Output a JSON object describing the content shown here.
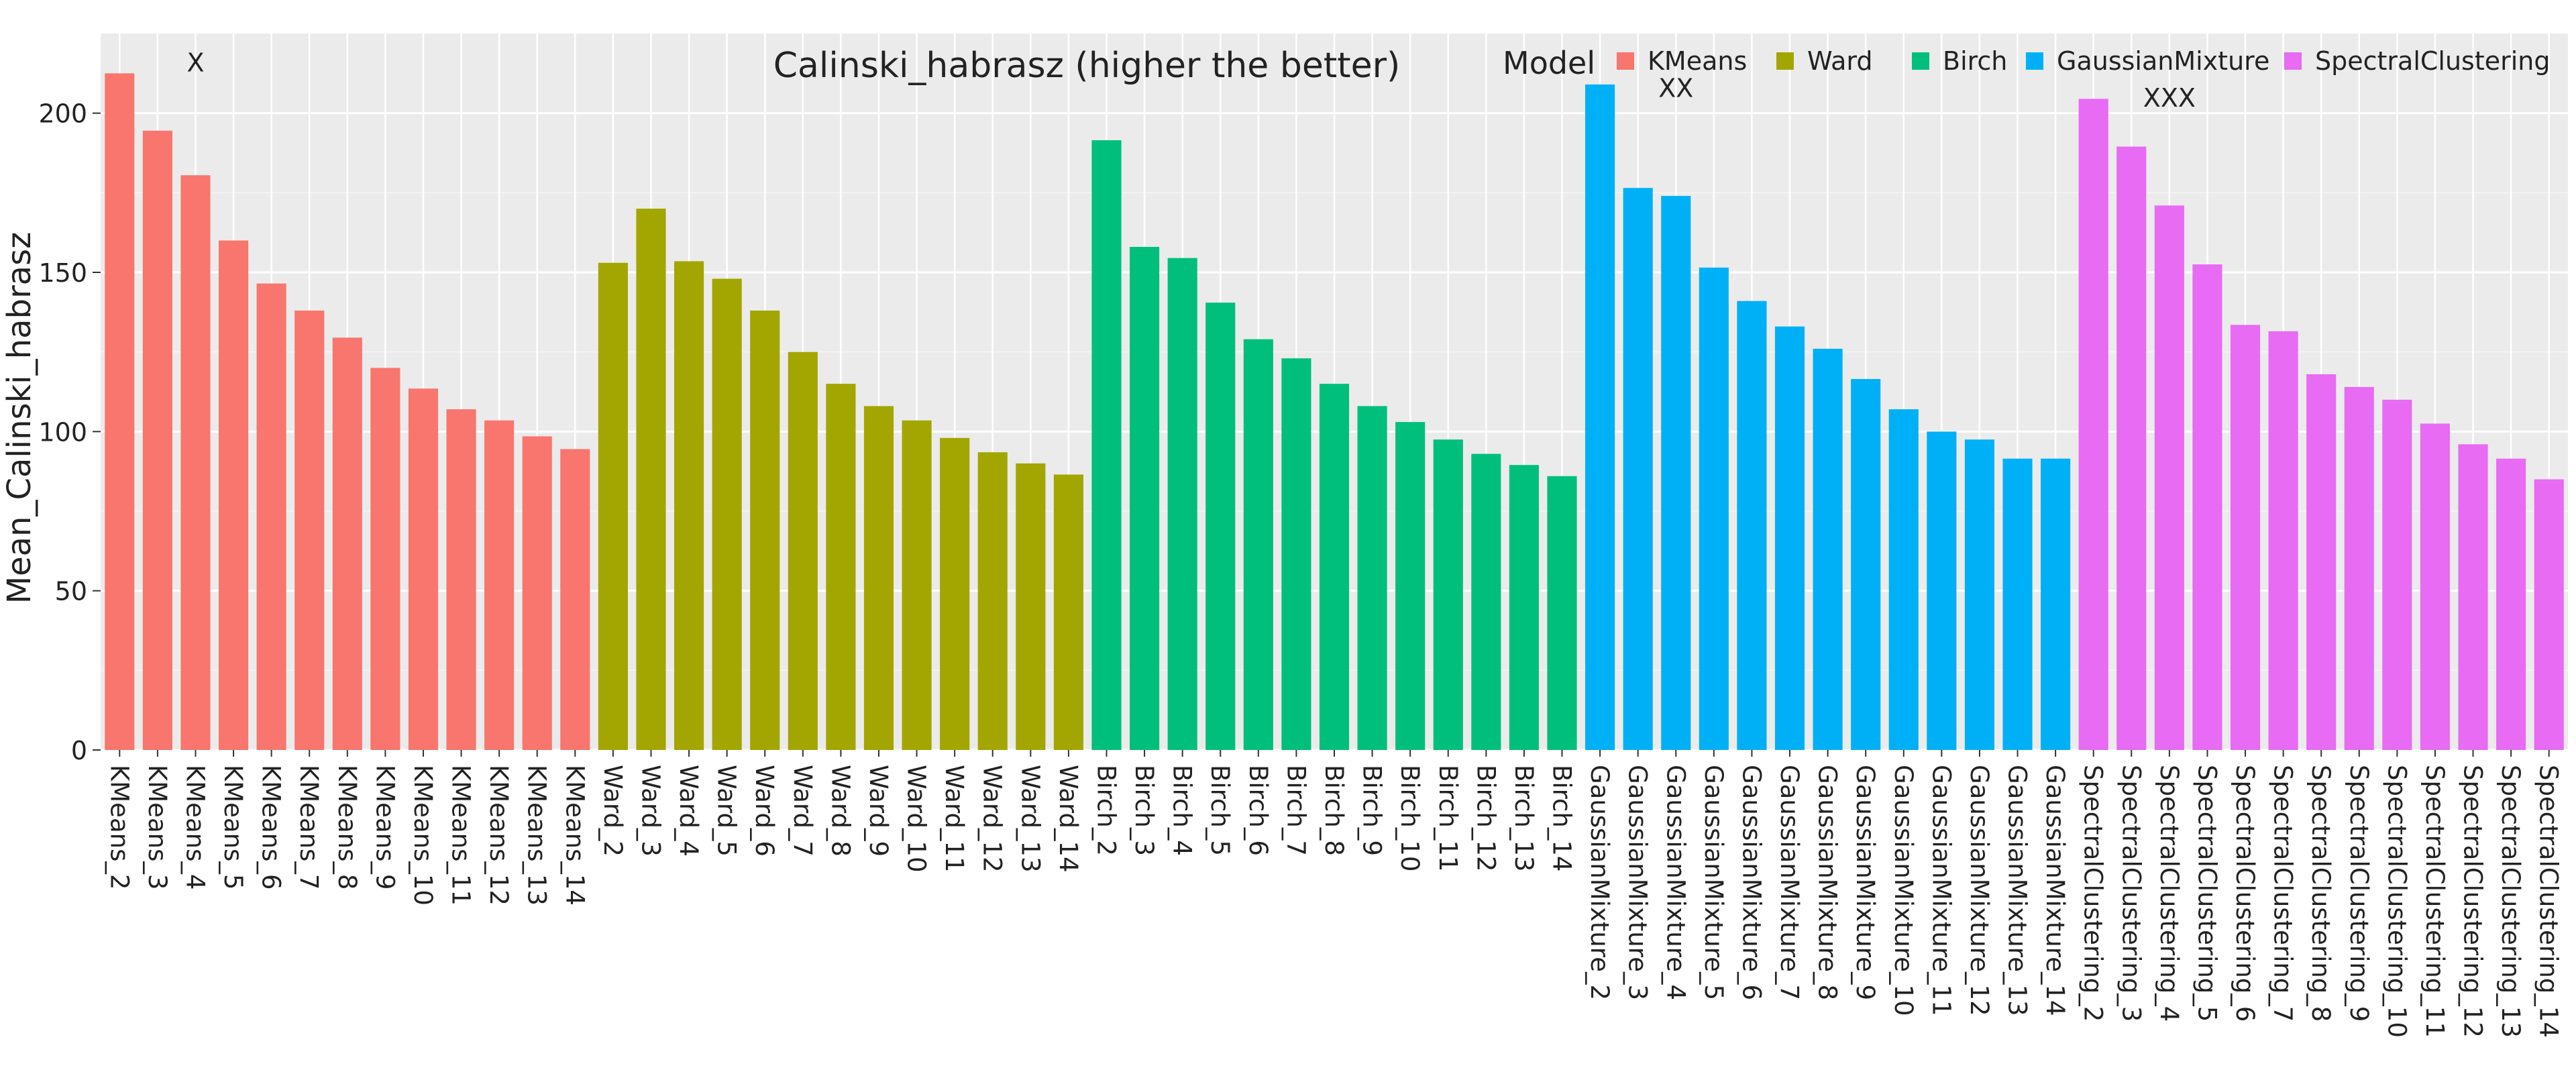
{
  "chart_data": {
    "type": "bar",
    "title": "Calinski_habrasz (higher the better)",
    "ylabel": "Mean_Calinski_habrasz",
    "xlabel": "",
    "ylim": [
      0,
      225
    ],
    "yticks": [
      0,
      50,
      100,
      150,
      200
    ],
    "grid": true,
    "legend": {
      "title": "Model",
      "placement": "top-right",
      "entries": [
        {
          "name": "KMeans",
          "color": "#F8766D"
        },
        {
          "name": "Ward",
          "color": "#A3A500"
        },
        {
          "name": "Birch",
          "color": "#00BF7D"
        },
        {
          "name": "GaussianMixture",
          "color": "#00B0F6"
        },
        {
          "name": "SpectralClustering",
          "color": "#E76BF3"
        }
      ]
    },
    "annotations": [
      {
        "text": "X",
        "category": "KMeans_4",
        "y": 216
      },
      {
        "text": "XX",
        "category": "GaussianMixture_4",
        "y": 208
      },
      {
        "text": "XXX",
        "category": "SpectralClustering_4",
        "y": 205
      }
    ],
    "series": [
      {
        "name": "KMeans",
        "categories": [
          "KMeans_2",
          "KMeans_3",
          "KMeans_4",
          "KMeans_5",
          "KMeans_6",
          "KMeans_7",
          "KMeans_8",
          "KMeans_9",
          "KMeans_10",
          "KMeans_11",
          "KMeans_12",
          "KMeans_13",
          "KMeans_14"
        ],
        "values": [
          212.5,
          194.5,
          180.5,
          160,
          146.5,
          138,
          129.5,
          120,
          113.5,
          107,
          103.5,
          98.5,
          94.5
        ]
      },
      {
        "name": "Ward",
        "categories": [
          "Ward_2",
          "Ward_3",
          "Ward_4",
          "Ward_5",
          "Ward_6",
          "Ward_7",
          "Ward_8",
          "Ward_9",
          "Ward_10",
          "Ward_11",
          "Ward_12",
          "Ward_13",
          "Ward_14"
        ],
        "values": [
          153,
          170,
          153.5,
          148,
          138,
          125,
          115,
          108,
          103.5,
          98,
          93.5,
          90,
          86.5
        ]
      },
      {
        "name": "Birch",
        "categories": [
          "Birch_2",
          "Birch_3",
          "Birch_4",
          "Birch_5",
          "Birch_6",
          "Birch_7",
          "Birch_8",
          "Birch_9",
          "Birch_10",
          "Birch_11",
          "Birch_12",
          "Birch_13",
          "Birch_14"
        ],
        "values": [
          191.5,
          158,
          154.5,
          140.5,
          129,
          123,
          115,
          108,
          103,
          97.5,
          93,
          89.5,
          86
        ]
      },
      {
        "name": "GaussianMixture",
        "categories": [
          "GaussianMixture_2",
          "GaussianMixture_3",
          "GaussianMixture_4",
          "GaussianMixture_5",
          "GaussianMixture_6",
          "GaussianMixture_7",
          "GaussianMixture_8",
          "GaussianMixture_9",
          "GaussianMixture_10",
          "GaussianMixture_11",
          "GaussianMixture_12",
          "GaussianMixture_13",
          "GaussianMixture_14"
        ],
        "values": [
          209,
          176.5,
          174,
          151.5,
          141,
          133,
          126,
          116.5,
          107,
          100,
          97.5,
          91.5,
          91.5
        ]
      },
      {
        "name": "SpectralClustering",
        "categories": [
          "SpectralClustering_2",
          "SpectralClustering_3",
          "SpectralClustering_4",
          "SpectralClustering_5",
          "SpectralClustering_6",
          "SpectralClustering_7",
          "SpectralClustering_8",
          "SpectralClustering_9",
          "SpectralClustering_10",
          "SpectralClustering_11",
          "SpectralClustering_12",
          "SpectralClustering_13",
          "SpectralClustering_14"
        ],
        "values": [
          204.5,
          189.5,
          171,
          152.5,
          133.5,
          131.5,
          118,
          114,
          110,
          102.5,
          96,
          91.5,
          85
        ]
      }
    ]
  }
}
